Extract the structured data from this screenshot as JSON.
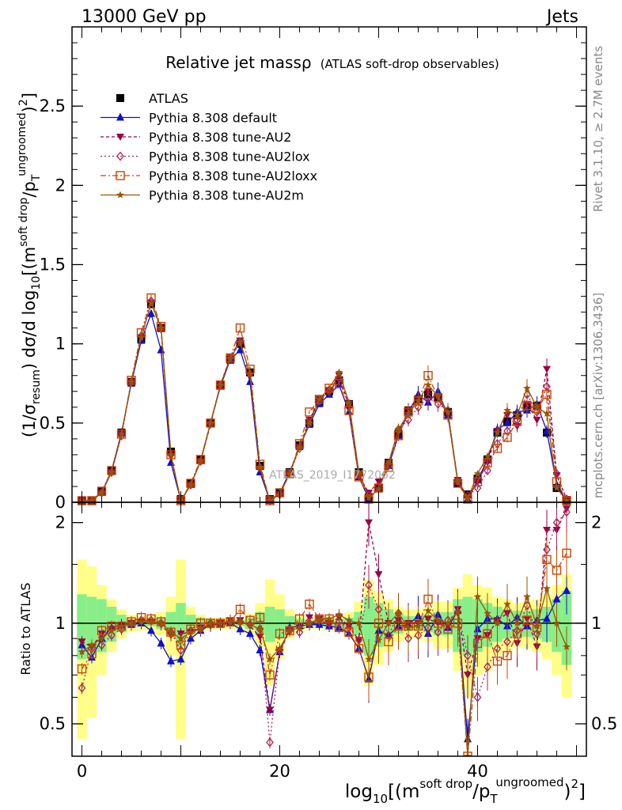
{
  "header": {
    "left": "13000 GeV pp",
    "right": "Jets"
  },
  "side_labels": {
    "rivet": "Rivet 3.1.10, ≥ 2.7M events",
    "mcplots": "mcplots.cern.ch [arXiv:1306.3436]"
  },
  "watermark": "ATLAS_2019_I1772062",
  "chart_data": [
    {
      "id": "main",
      "type": "scatter",
      "title": "Relative jet massρ",
      "subtitle": "(ATLAS soft-drop observables)",
      "ylabel": "(1/σresum) dσ/d log10[(msoft drop/pTungroomed)2]",
      "xlim": [
        -1,
        51
      ],
      "ylim": [
        0,
        3.0
      ],
      "yticks": [
        0,
        0.5,
        1,
        1.5,
        2,
        2.5
      ],
      "ytick_labels": [
        "0",
        "0.5",
        "1",
        "1.5",
        "2",
        "2.5"
      ],
      "x": [
        0,
        1,
        2,
        3,
        4,
        5,
        6,
        7,
        8,
        9,
        10,
        11,
        12,
        13,
        14,
        15,
        16,
        17,
        18,
        19,
        20,
        21,
        22,
        23,
        24,
        25,
        26,
        27,
        28,
        29,
        30,
        31,
        32,
        33,
        34,
        35,
        36,
        37,
        38,
        39,
        40,
        41,
        42,
        43,
        44,
        45,
        46,
        47,
        48,
        49
      ],
      "series": [
        {
          "name": "ATLAS",
          "color": "#000000",
          "marker": "square",
          "values": [
            0.01,
            0.01,
            0.07,
            0.2,
            0.44,
            0.76,
            1.03,
            1.25,
            1.1,
            0.32,
            0.02,
            0.12,
            0.27,
            0.5,
            0.74,
            0.9,
            1.0,
            0.82,
            0.23,
            0.02,
            0.06,
            0.19,
            0.36,
            0.5,
            0.63,
            0.7,
            0.77,
            0.62,
            0.19,
            0.03,
            0.09,
            0.25,
            0.43,
            0.58,
            0.65,
            0.68,
            0.66,
            0.57,
            0.12,
            0.05,
            0.15,
            0.27,
            0.44,
            0.51,
            0.55,
            0.6,
            0.61,
            0.44,
            0.09,
            0.01
          ]
        },
        {
          "name": "Pythia 8.308 default",
          "color": "#1010cc",
          "marker": "triangle-up",
          "values": [
            0.01,
            0.01,
            0.06,
            0.2,
            0.44,
            0.75,
            1.02,
            1.19,
            0.96,
            0.25,
            0.01,
            0.11,
            0.26,
            0.5,
            0.73,
            0.9,
            0.96,
            0.76,
            0.19,
            0.01,
            0.06,
            0.19,
            0.35,
            0.49,
            0.62,
            0.68,
            0.74,
            0.57,
            0.16,
            0.02,
            0.09,
            0.23,
            0.42,
            0.57,
            0.68,
            0.63,
            0.7,
            0.55,
            0.13,
            0.02,
            0.14,
            0.27,
            0.46,
            0.5,
            0.57,
            0.58,
            0.62,
            0.45,
            0.11,
            0.01
          ]
        },
        {
          "name": "Pythia 8.308 tune-AU2",
          "color": "#990044",
          "marker": "triangle-down",
          "values": [
            0.01,
            0.01,
            0.06,
            0.19,
            0.43,
            0.76,
            1.04,
            1.26,
            1.09,
            0.29,
            0.01,
            0.11,
            0.26,
            0.49,
            0.74,
            0.92,
            1.02,
            0.8,
            0.21,
            0.01,
            0.05,
            0.18,
            0.35,
            0.52,
            0.65,
            0.7,
            0.8,
            0.61,
            0.17,
            0.06,
            0.13,
            0.25,
            0.44,
            0.58,
            0.65,
            0.7,
            0.66,
            0.56,
            0.14,
            0.03,
            0.13,
            0.25,
            0.45,
            0.55,
            0.48,
            0.62,
            0.52,
            0.84,
            0.17,
            0.02
          ]
        },
        {
          "name": "Pythia 8.308 tune-AU2lox",
          "color": "#aa2255",
          "marker": "diamond",
          "values": [
            0.01,
            0.01,
            0.06,
            0.19,
            0.42,
            0.76,
            1.05,
            1.27,
            1.1,
            0.3,
            0.01,
            0.11,
            0.26,
            0.5,
            0.74,
            0.91,
            1.01,
            0.81,
            0.22,
            0.01,
            0.05,
            0.18,
            0.34,
            0.5,
            0.64,
            0.7,
            0.78,
            0.6,
            0.17,
            0.04,
            0.1,
            0.23,
            0.46,
            0.52,
            0.6,
            0.66,
            0.62,
            0.58,
            0.13,
            0.04,
            0.09,
            0.2,
            0.37,
            0.45,
            0.52,
            0.68,
            0.57,
            0.73,
            0.18,
            0.02
          ]
        },
        {
          "name": "Pythia 8.308 tune-AU2loxx",
          "color": "#cc4400",
          "marker": "square-open",
          "values": [
            0.01,
            0.01,
            0.07,
            0.2,
            0.43,
            0.77,
            1.07,
            1.29,
            1.11,
            0.3,
            0.01,
            0.12,
            0.27,
            0.5,
            0.74,
            0.91,
            1.1,
            0.84,
            0.24,
            0.01,
            0.06,
            0.18,
            0.37,
            0.57,
            0.65,
            0.72,
            0.75,
            0.58,
            0.16,
            0.02,
            0.09,
            0.22,
            0.42,
            0.57,
            0.64,
            0.8,
            0.66,
            0.55,
            0.12,
            0.02,
            0.13,
            0.25,
            0.34,
            0.41,
            0.51,
            0.61,
            0.59,
            0.68,
            0.13,
            0.01
          ]
        },
        {
          "name": "Pythia 8.308 tune-AU2m",
          "color": "#995500",
          "marker": "star",
          "values": [
            0.01,
            0.01,
            0.06,
            0.19,
            0.43,
            0.76,
            1.04,
            1.26,
            1.1,
            0.3,
            0.01,
            0.11,
            0.26,
            0.5,
            0.74,
            0.91,
            1.01,
            0.81,
            0.22,
            0.01,
            0.05,
            0.18,
            0.35,
            0.5,
            0.65,
            0.72,
            0.82,
            0.63,
            0.19,
            0.03,
            0.08,
            0.25,
            0.46,
            0.56,
            0.64,
            0.74,
            0.67,
            0.57,
            0.13,
            0.02,
            0.18,
            0.29,
            0.44,
            0.58,
            0.55,
            0.72,
            0.6,
            0.56,
            0.09,
            0.01
          ]
        }
      ]
    },
    {
      "id": "ratio",
      "type": "scatter",
      "ylabel": "Ratio to ATLAS",
      "xlabel": "log10[(msoft drop/pTungroomed)2]",
      "xlim": [
        -1,
        51
      ],
      "ylim": [
        0.4,
        2.3
      ],
      "yscale": "log",
      "xticks": [
        0,
        20,
        40
      ],
      "xtick_labels": [
        "0",
        "20",
        "40"
      ],
      "yticks": [
        0.5,
        1,
        2
      ],
      "ytick_labels": [
        "0.5",
        "1",
        "2"
      ],
      "band_stat": [
        0.22,
        0.2,
        0.18,
        0.12,
        0.06,
        0.03,
        0.02,
        0.02,
        0.04,
        0.08,
        0.15,
        0.06,
        0.04,
        0.03,
        0.02,
        0.02,
        0.02,
        0.04,
        0.08,
        0.12,
        0.1,
        0.05,
        0.03,
        0.02,
        0.02,
        0.03,
        0.03,
        0.04,
        0.08,
        0.2,
        0.15,
        0.1,
        0.07,
        0.05,
        0.05,
        0.06,
        0.08,
        0.08,
        0.18,
        0.2,
        0.18,
        0.15,
        0.12,
        0.1,
        0.09,
        0.09,
        0.1,
        0.12,
        0.18,
        0.25
      ],
      "band_total": [
        0.55,
        0.48,
        0.3,
        0.18,
        0.1,
        0.06,
        0.05,
        0.05,
        0.08,
        0.2,
        0.55,
        0.12,
        0.06,
        0.04,
        0.04,
        0.04,
        0.04,
        0.07,
        0.15,
        0.35,
        0.22,
        0.1,
        0.06,
        0.04,
        0.04,
        0.05,
        0.05,
        0.08,
        0.16,
        0.35,
        0.25,
        0.18,
        0.12,
        0.1,
        0.1,
        0.12,
        0.16,
        0.16,
        0.28,
        0.4,
        0.3,
        0.28,
        0.2,
        0.18,
        0.15,
        0.16,
        0.18,
        0.22,
        0.3,
        0.4
      ],
      "series": [
        {
          "name": "Pythia 8.308 default",
          "color": "#1010cc",
          "marker": "triangle-up",
          "values": [
            0.86,
            0.79,
            0.9,
            0.97,
            0.99,
            0.99,
            1.0,
            0.95,
            0.87,
            0.77,
            0.78,
            0.9,
            0.95,
            0.99,
            0.99,
            1.0,
            0.96,
            0.93,
            0.83,
            0.55,
            0.82,
            0.97,
            0.98,
            0.99,
            0.99,
            0.98,
            0.97,
            0.93,
            0.84,
            0.68,
            0.95,
            0.92,
            0.98,
            0.99,
            1.05,
            0.93,
            1.06,
            0.97,
            1.09,
            0.45,
            0.96,
            1.03,
            1.03,
            0.98,
            1.04,
            0.98,
            1.02,
            1.03,
            1.18,
            1.25
          ]
        },
        {
          "name": "Pythia 8.308 tune-AU2",
          "color": "#990044",
          "marker": "triangle-down",
          "values": [
            0.88,
            0.85,
            0.93,
            0.96,
            0.98,
            1.0,
            1.01,
            1.01,
            0.99,
            0.92,
            0.93,
            0.94,
            0.97,
            0.98,
            1.0,
            1.02,
            1.02,
            0.98,
            0.91,
            0.55,
            0.82,
            0.95,
            0.97,
            1.04,
            1.03,
            1.0,
            1.04,
            0.98,
            0.89,
            2.0,
            1.4,
            1.0,
            1.02,
            1.0,
            1.0,
            1.03,
            1.0,
            0.98,
            1.1,
            0.7,
            0.9,
            0.92,
            1.02,
            1.07,
            0.87,
            1.03,
            0.85,
            1.9,
            1.9,
            2.2
          ]
        },
        {
          "name": "Pythia 8.308 tune-AU2lox",
          "color": "#aa2255",
          "marker": "diamond",
          "values": [
            0.64,
            0.84,
            0.86,
            0.92,
            0.96,
            1.0,
            1.02,
            1.02,
            1.0,
            0.94,
            0.83,
            0.95,
            0.96,
            1.0,
            1.0,
            1.01,
            1.01,
            0.99,
            0.96,
            0.44,
            0.83,
            0.95,
            0.94,
            1.0,
            1.02,
            1.0,
            1.01,
            0.97,
            0.89,
            1.3,
            1.1,
            0.92,
            1.07,
            0.9,
            0.92,
            0.97,
            0.94,
            1.02,
            1.08,
            0.8,
            0.6,
            0.74,
            0.84,
            0.88,
            0.95,
            1.13,
            0.93,
            1.66,
            2.0,
            2.15
          ]
        },
        {
          "name": "Pythia 8.308 tune-AU2loxx",
          "color": "#cc4400",
          "marker": "square-open",
          "values": [
            0.73,
            0.81,
            0.95,
            0.98,
            0.98,
            1.01,
            1.04,
            1.03,
            1.01,
            0.94,
            0.86,
            0.96,
            1.0,
            1.0,
            1.0,
            1.01,
            1.1,
            1.02,
            1.04,
            0.7,
            0.93,
            0.95,
            1.03,
            1.14,
            1.03,
            1.03,
            0.97,
            0.94,
            0.84,
            0.69,
            1.0,
            0.88,
            0.98,
            0.98,
            0.98,
            1.18,
            1.0,
            0.96,
            1.0,
            0.4,
            0.87,
            0.93,
            0.77,
            0.8,
            0.93,
            1.02,
            0.97,
            1.55,
            1.44,
            1.62
          ]
        },
        {
          "name": "Pythia 8.308 tune-AU2m",
          "color": "#995500",
          "marker": "star",
          "values": [
            0.82,
            0.86,
            0.9,
            0.95,
            0.98,
            1.0,
            1.01,
            1.01,
            1.0,
            0.94,
            0.9,
            0.94,
            0.96,
            1.0,
            1.0,
            1.01,
            1.01,
            0.99,
            0.96,
            0.78,
            0.84,
            0.95,
            0.97,
            1.0,
            1.03,
            1.03,
            1.06,
            1.02,
            1.0,
            0.78,
            0.89,
            1.0,
            1.07,
            0.97,
            0.98,
            1.09,
            1.02,
            1.0,
            1.08,
            0.4,
            1.2,
            1.07,
            1.0,
            1.14,
            1.0,
            1.2,
            0.98,
            1.27,
            1.0,
            0.85
          ]
        }
      ]
    }
  ]
}
